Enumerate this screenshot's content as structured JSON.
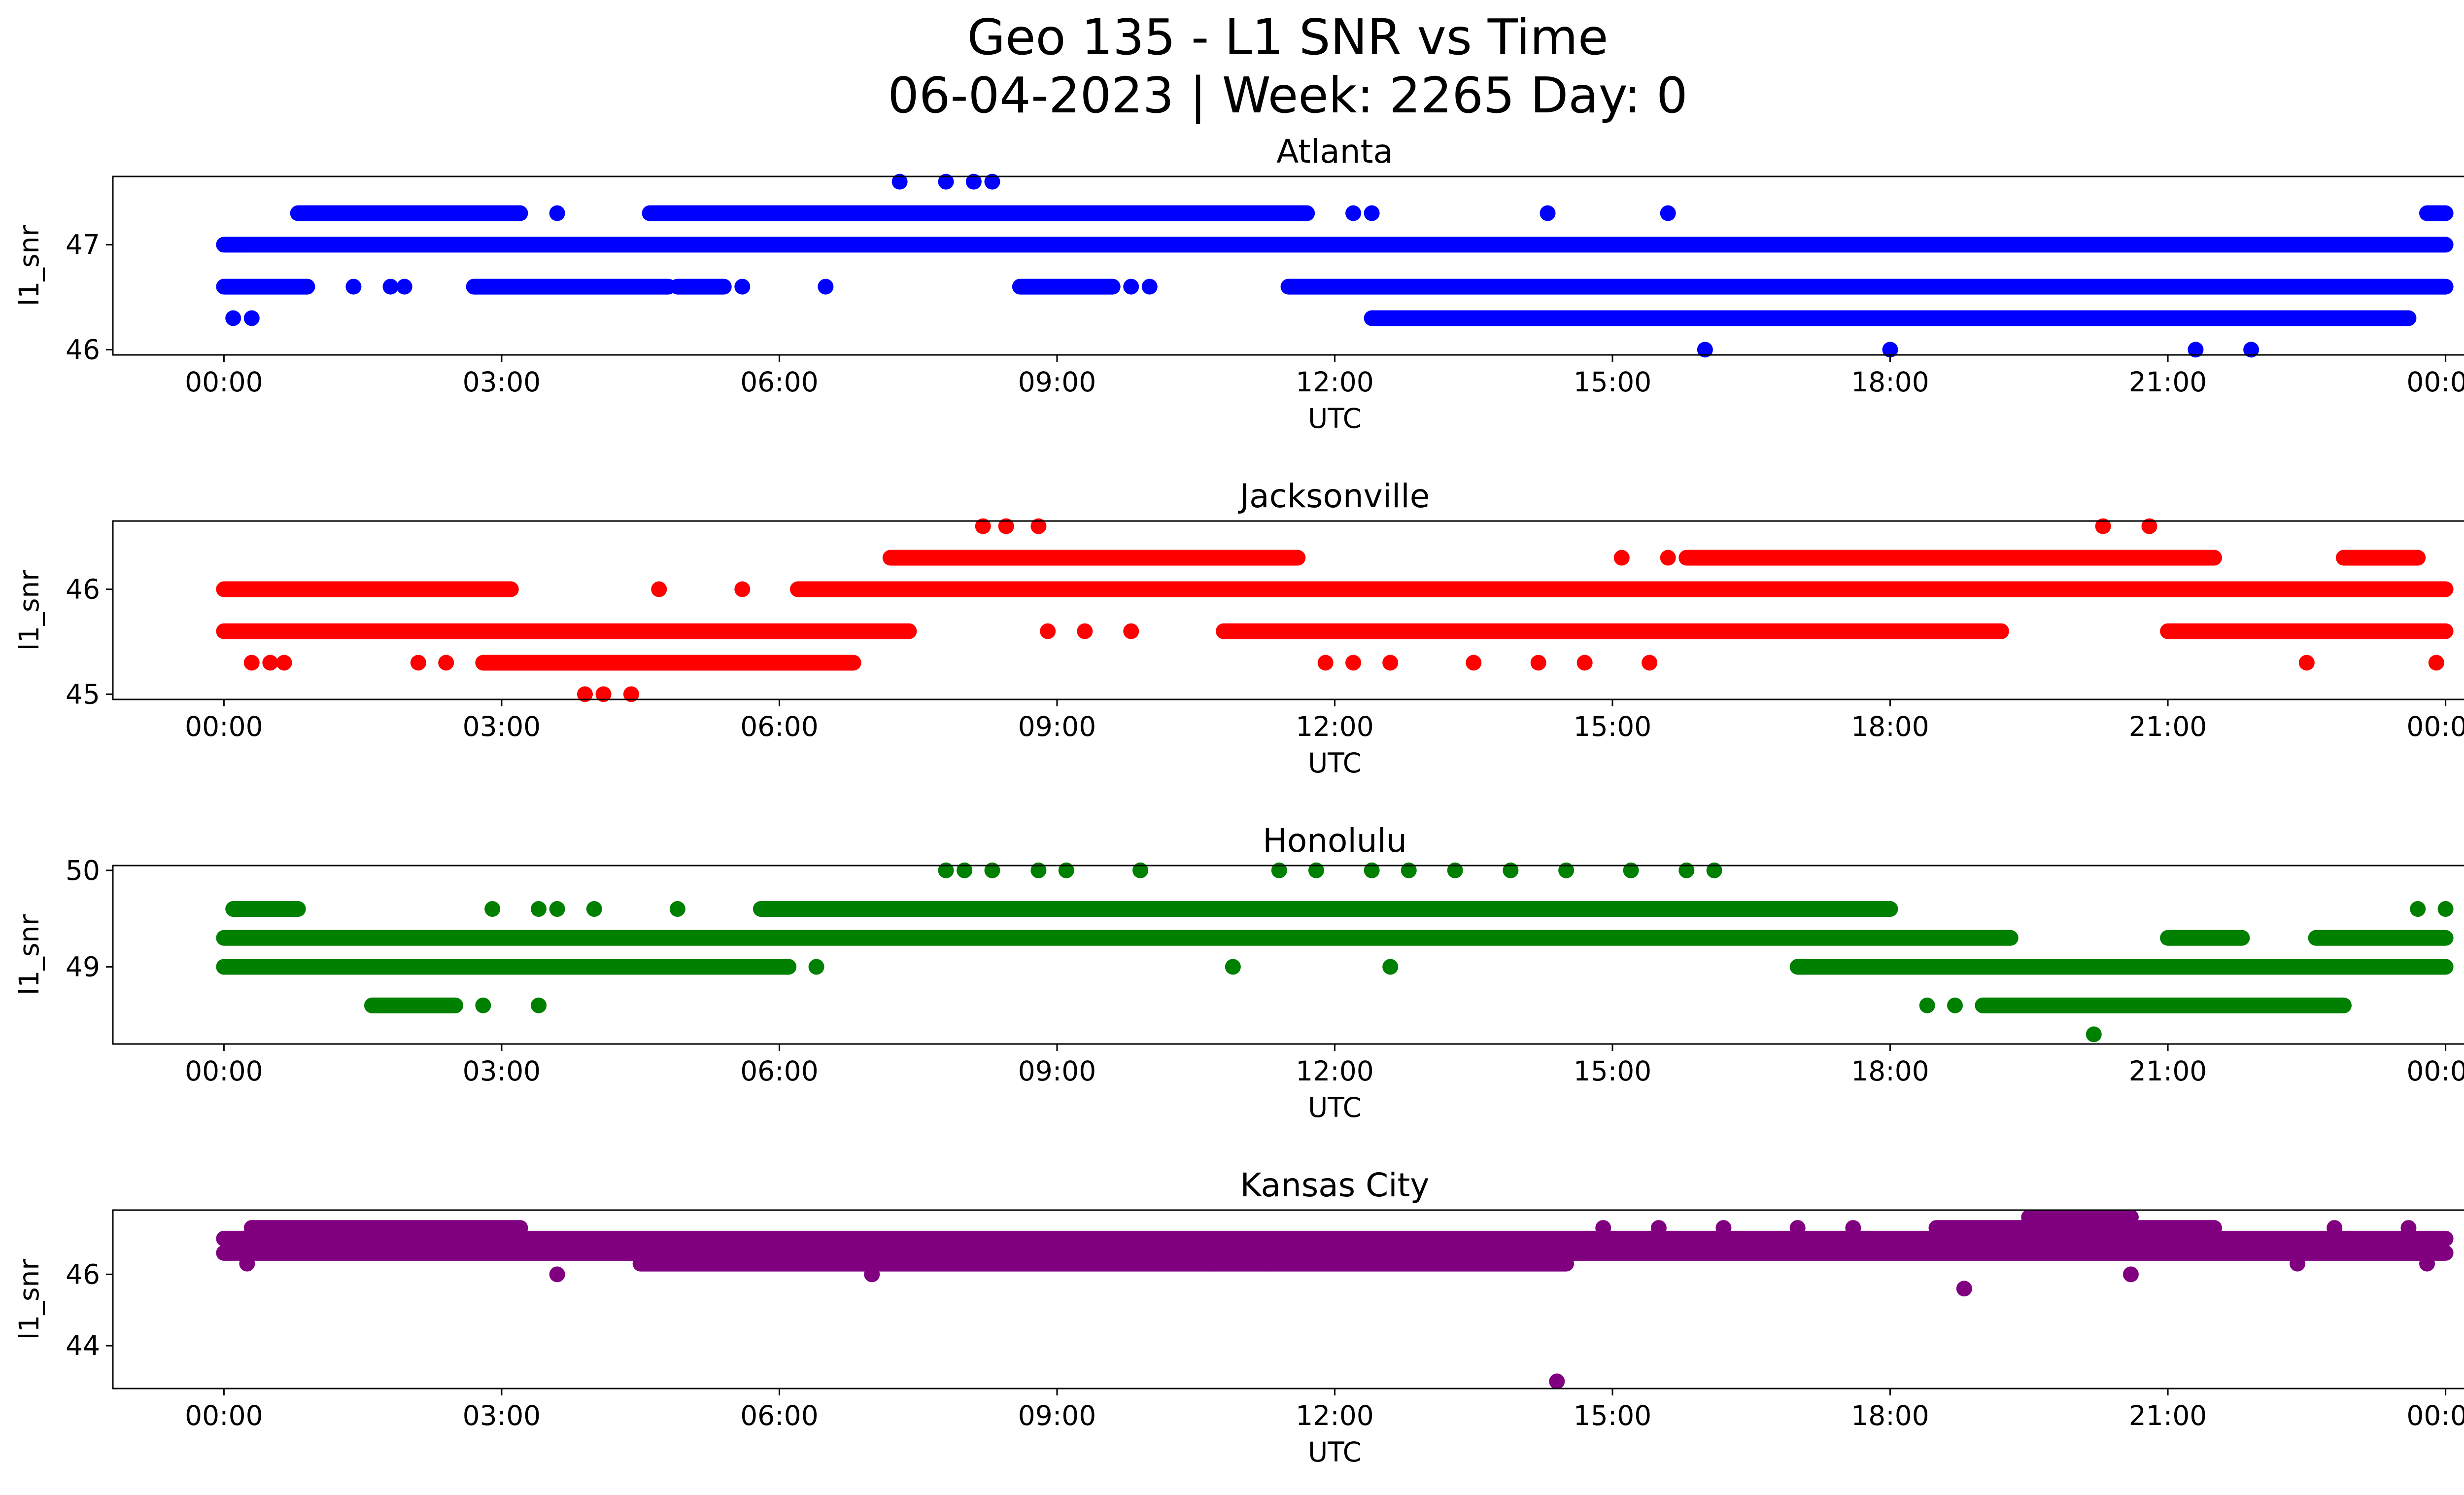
{
  "figure": {
    "title_line1": "Geo 135 - L1 SNR vs Time",
    "title_line2": "06-04-2023 | Week: 2265 Day: 0"
  },
  "chart_data": [
    {
      "type": "scatter",
      "title": "Atlanta",
      "xlabel": "UTC",
      "ylabel": "l1_snr",
      "color": "#0000ff",
      "x_ticks": [
        "00:00",
        "03:00",
        "06:00",
        "09:00",
        "12:00",
        "15:00",
        "18:00",
        "21:00",
        "00:00"
      ],
      "y_ticks": [
        46,
        47
      ],
      "ylim": [
        45.95,
        47.65
      ],
      "xlim_hours": [
        -1.2,
        25.2
      ],
      "bands": [
        {
          "y": 47.0,
          "segments": [
            [
              0.0,
              24.0
            ]
          ]
        },
        {
          "y": 46.6,
          "segments": [
            [
              0.0,
              0.9
            ],
            [
              2.7,
              4.8
            ],
            [
              4.9,
              5.4
            ],
            [
              8.6,
              9.6
            ],
            [
              11.5,
              24.0
            ]
          ]
        },
        {
          "y": 47.3,
          "segments": [
            [
              0.8,
              3.2
            ],
            [
              4.6,
              11.7
            ],
            [
              23.8,
              24.0
            ]
          ]
        },
        {
          "y": 46.3,
          "segments": [
            [
              12.4,
              23.6
            ]
          ]
        }
      ],
      "points": [
        [
          0.1,
          46.3
        ],
        [
          0.3,
          46.3
        ],
        [
          1.4,
          46.6
        ],
        [
          1.8,
          46.6
        ],
        [
          1.95,
          46.6
        ],
        [
          3.6,
          47.3
        ],
        [
          5.6,
          46.6
        ],
        [
          6.5,
          46.6
        ],
        [
          9.8,
          46.6
        ],
        [
          10.0,
          46.6
        ],
        [
          7.3,
          47.6
        ],
        [
          7.8,
          47.6
        ],
        [
          8.1,
          47.6
        ],
        [
          8.3,
          47.6
        ],
        [
          12.2,
          47.3
        ],
        [
          12.4,
          47.3
        ],
        [
          14.3,
          47.3
        ],
        [
          15.6,
          47.3
        ],
        [
          16.0,
          46.0
        ],
        [
          18.0,
          46.0
        ],
        [
          21.3,
          46.0
        ],
        [
          21.9,
          46.0
        ]
      ]
    },
    {
      "type": "scatter",
      "title": "Jacksonville",
      "xlabel": "UTC",
      "ylabel": "l1_snr",
      "color": "#ff0000",
      "x_ticks": [
        "00:00",
        "03:00",
        "06:00",
        "09:00",
        "12:00",
        "15:00",
        "18:00",
        "21:00",
        "00:00"
      ],
      "y_ticks": [
        45,
        46
      ],
      "ylim": [
        44.95,
        46.65
      ],
      "xlim_hours": [
        -1.2,
        25.2
      ],
      "bands": [
        {
          "y": 46.0,
          "segments": [
            [
              0.0,
              3.1
            ],
            [
              6.2,
              24.0
            ]
          ]
        },
        {
          "y": 45.6,
          "segments": [
            [
              0.0,
              7.4
            ],
            [
              10.8,
              19.2
            ],
            [
              21.0,
              24.0
            ]
          ]
        },
        {
          "y": 45.3,
          "segments": [
            [
              2.8,
              6.8
            ]
          ]
        },
        {
          "y": 46.3,
          "segments": [
            [
              7.2,
              11.6
            ],
            [
              15.8,
              21.5
            ],
            [
              22.9,
              23.7
            ]
          ]
        }
      ],
      "points": [
        [
          0.3,
          45.3
        ],
        [
          0.5,
          45.3
        ],
        [
          0.65,
          45.3
        ],
        [
          2.1,
          45.3
        ],
        [
          2.4,
          45.3
        ],
        [
          3.9,
          45.0
        ],
        [
          4.1,
          45.0
        ],
        [
          4.4,
          45.0
        ],
        [
          4.7,
          46.0
        ],
        [
          5.6,
          46.0
        ],
        [
          8.2,
          46.6
        ],
        [
          8.45,
          46.6
        ],
        [
          8.8,
          46.6
        ],
        [
          8.9,
          45.6
        ],
        [
          9.3,
          45.6
        ],
        [
          9.8,
          45.6
        ],
        [
          11.9,
          45.3
        ],
        [
          12.2,
          45.3
        ],
        [
          12.6,
          45.3
        ],
        [
          13.5,
          45.3
        ],
        [
          14.2,
          45.3
        ],
        [
          14.7,
          45.3
        ],
        [
          15.4,
          45.3
        ],
        [
          15.1,
          46.3
        ],
        [
          15.6,
          46.3
        ],
        [
          20.3,
          46.6
        ],
        [
          20.8,
          46.6
        ],
        [
          22.5,
          45.3
        ],
        [
          23.9,
          45.3
        ]
      ]
    },
    {
      "type": "scatter",
      "title": "Honolulu",
      "xlabel": "UTC",
      "ylabel": "l1_snr",
      "color": "#008000",
      "x_ticks": [
        "00:00",
        "03:00",
        "06:00",
        "09:00",
        "12:00",
        "15:00",
        "18:00",
        "21:00",
        "00:00"
      ],
      "y_ticks": [
        49,
        50
      ],
      "ylim": [
        48.2,
        50.05
      ],
      "xlim_hours": [
        -1.2,
        25.2
      ],
      "bands": [
        {
          "y": 49.3,
          "segments": [
            [
              0.0,
              19.3
            ],
            [
              21.0,
              21.8
            ],
            [
              22.6,
              24.0
            ]
          ]
        },
        {
          "y": 49.0,
          "segments": [
            [
              0.0,
              6.1
            ],
            [
              17.0,
              24.0
            ]
          ]
        },
        {
          "y": 49.6,
          "segments": [
            [
              0.1,
              0.8
            ],
            [
              5.8,
              18.0
            ]
          ]
        },
        {
          "y": 48.6,
          "segments": [
            [
              1.6,
              2.5
            ],
            [
              19.0,
              22.9
            ]
          ]
        }
      ],
      "points": [
        [
          2.8,
          48.6
        ],
        [
          3.4,
          48.6
        ],
        [
          2.9,
          49.6
        ],
        [
          3.4,
          49.6
        ],
        [
          3.6,
          49.6
        ],
        [
          4.0,
          49.6
        ],
        [
          4.9,
          49.6
        ],
        [
          6.4,
          49.0
        ],
        [
          10.9,
          49.0
        ],
        [
          12.6,
          49.0
        ],
        [
          7.8,
          50.0
        ],
        [
          8.0,
          50.0
        ],
        [
          8.3,
          50.0
        ],
        [
          8.8,
          50.0
        ],
        [
          9.1,
          50.0
        ],
        [
          9.9,
          50.0
        ],
        [
          11.4,
          50.0
        ],
        [
          11.8,
          50.0
        ],
        [
          12.4,
          50.0
        ],
        [
          12.8,
          50.0
        ],
        [
          13.3,
          50.0
        ],
        [
          13.9,
          50.0
        ],
        [
          14.5,
          50.0
        ],
        [
          15.2,
          50.0
        ],
        [
          15.8,
          50.0
        ],
        [
          16.1,
          50.0
        ],
        [
          18.4,
          48.6
        ],
        [
          18.7,
          48.6
        ],
        [
          20.2,
          48.3
        ],
        [
          23.7,
          49.6
        ],
        [
          24.0,
          49.6
        ]
      ]
    },
    {
      "type": "scatter",
      "title": "Kansas City",
      "xlabel": "UTC",
      "ylabel": "l1_snr",
      "color": "#800080",
      "x_ticks": [
        "00:00",
        "03:00",
        "06:00",
        "09:00",
        "12:00",
        "15:00",
        "18:00",
        "21:00",
        "00:00"
      ],
      "y_ticks": [
        44,
        46
      ],
      "ylim": [
        42.8,
        47.8
      ],
      "xlim_hours": [
        -1.2,
        25.2
      ],
      "bands": [
        {
          "y": 47.0,
          "segments": [
            [
              0.0,
              24.0
            ]
          ]
        },
        {
          "y": 46.6,
          "segments": [
            [
              0.0,
              24.0
            ]
          ]
        },
        {
          "y": 46.3,
          "segments": [
            [
              4.5,
              14.5
            ]
          ]
        },
        {
          "y": 47.3,
          "segments": [
            [
              0.3,
              3.2
            ],
            [
              18.5,
              21.5
            ]
          ]
        },
        {
          "y": 47.6,
          "segments": [
            [
              19.5,
              20.6
            ]
          ]
        }
      ],
      "points": [
        [
          0.25,
          46.3
        ],
        [
          3.6,
          46.0
        ],
        [
          7.0,
          46.0
        ],
        [
          18.8,
          45.6
        ],
        [
          20.6,
          46.0
        ],
        [
          14.4,
          43.0
        ],
        [
          14.9,
          47.3
        ],
        [
          15.5,
          47.3
        ],
        [
          16.2,
          47.3
        ],
        [
          17.0,
          47.3
        ],
        [
          17.6,
          47.3
        ],
        [
          22.8,
          47.3
        ],
        [
          23.6,
          47.3
        ],
        [
          10.7,
          46.3
        ],
        [
          11.3,
          46.3
        ],
        [
          22.4,
          46.3
        ],
        [
          23.8,
          46.3
        ]
      ]
    }
  ]
}
